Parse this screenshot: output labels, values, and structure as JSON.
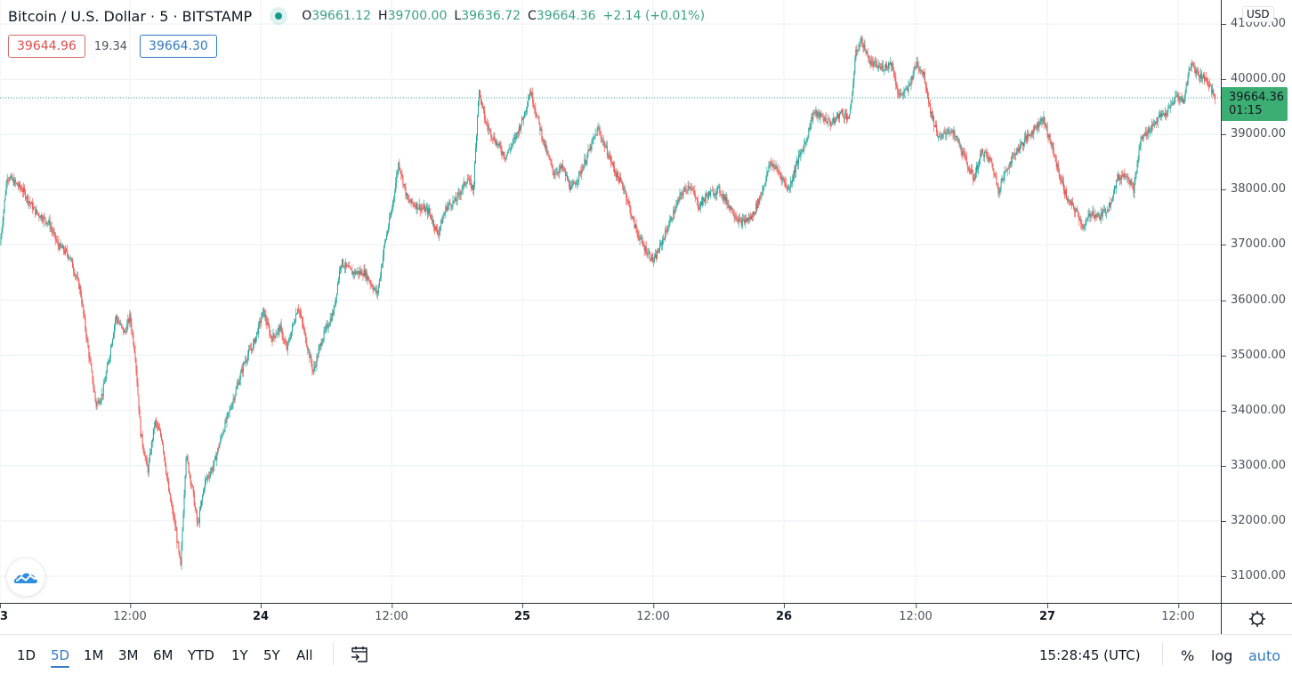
{
  "legend": {
    "symbol_title": "Bitcoin / U.S. Dollar · 5 · BITSTAMP",
    "market_status_icon": "market-open-dot",
    "ohlc": {
      "open_key": "O",
      "open": "39661.12",
      "high_key": "H",
      "high": "39700.00",
      "low_key": "L",
      "low": "39636.72",
      "close_key": "C",
      "close": "39664.36",
      "change": "+2.14 (+0.01%)"
    },
    "quote": {
      "bid": "39644.96",
      "spread": "19.34",
      "ask": "39664.30"
    }
  },
  "price_axis": {
    "currency": "USD",
    "ticks": [
      "41000.00",
      "40000.00",
      "39000.00",
      "38000.00",
      "37000.00",
      "36000.00",
      "35000.00",
      "34000.00",
      "33000.00",
      "32000.00",
      "31000.00"
    ],
    "last_price": "39664.36",
    "countdown": "01:15"
  },
  "time_axis": {
    "ticks": [
      {
        "label": "23",
        "day": true
      },
      {
        "label": "12:00",
        "day": false
      },
      {
        "label": "24",
        "day": true
      },
      {
        "label": "12:00",
        "day": false
      },
      {
        "label": "25",
        "day": true
      },
      {
        "label": "12:00",
        "day": false
      },
      {
        "label": "26",
        "day": true
      },
      {
        "label": "12:00",
        "day": false
      },
      {
        "label": "27",
        "day": true
      },
      {
        "label": "12:00",
        "day": false
      }
    ]
  },
  "bottom_bar": {
    "ranges": [
      "1D",
      "5D",
      "1M",
      "3M",
      "6M",
      "YTD",
      "1Y",
      "5Y",
      "All"
    ],
    "active_range": "5D",
    "goto_date_icon": "calendar-goto-icon",
    "clock": "15:28:45 (UTC)",
    "percent_label": "%",
    "log_label": "log",
    "auto_label": "auto"
  },
  "colors": {
    "up": "#26a69a",
    "down": "#ef5350",
    "price_line": "#26a69a",
    "accent": "#3179c4",
    "grid": "#f0f3fa"
  },
  "chart_data": {
    "type": "candlestick",
    "title": "Bitcoin / U.S. Dollar · 5 · BITSTAMP",
    "interval": "5 minutes",
    "xlabel": "",
    "ylabel": "USD",
    "ylim": [
      30500,
      41300
    ],
    "x_ticks": [
      "23",
      "12:00",
      "24",
      "12:00",
      "25",
      "12:00",
      "26",
      "12:00",
      "27",
      "12:00"
    ],
    "y_ticks": [
      31000,
      32000,
      33000,
      34000,
      35000,
      36000,
      37000,
      38000,
      39000,
      40000,
      41000
    ],
    "grid": true,
    "last_price": 39664.36,
    "path": [
      [
        0,
        37000
      ],
      [
        8,
        38250
      ],
      [
        25,
        38000
      ],
      [
        40,
        37600
      ],
      [
        55,
        37400
      ],
      [
        65,
        37000
      ],
      [
        78,
        36800
      ],
      [
        90,
        36200
      ],
      [
        100,
        35000
      ],
      [
        108,
        34100
      ],
      [
        115,
        34300
      ],
      [
        122,
        34900
      ],
      [
        130,
        35700
      ],
      [
        140,
        35400
      ],
      [
        146,
        35700
      ],
      [
        152,
        35000
      ],
      [
        158,
        33600
      ],
      [
        166,
        32900
      ],
      [
        174,
        33800
      ],
      [
        182,
        33500
      ],
      [
        190,
        32500
      ],
      [
        197,
        31900
      ],
      [
        203,
        31150
      ],
      [
        209,
        33200
      ],
      [
        216,
        32600
      ],
      [
        222,
        31900
      ],
      [
        230,
        32700
      ],
      [
        240,
        33000
      ],
      [
        250,
        33600
      ],
      [
        262,
        34200
      ],
      [
        275,
        34900
      ],
      [
        285,
        35200
      ],
      [
        296,
        35800
      ],
      [
        305,
        35300
      ],
      [
        315,
        35500
      ],
      [
        322,
        35100
      ],
      [
        335,
        35900
      ],
      [
        345,
        35200
      ],
      [
        352,
        34700
      ],
      [
        362,
        35300
      ],
      [
        375,
        35800
      ],
      [
        383,
        36700
      ],
      [
        395,
        36500
      ],
      [
        410,
        36500
      ],
      [
        424,
        36100
      ],
      [
        432,
        37000
      ],
      [
        440,
        37600
      ],
      [
        448,
        38500
      ],
      [
        458,
        37800
      ],
      [
        470,
        37700
      ],
      [
        482,
        37600
      ],
      [
        492,
        37200
      ],
      [
        502,
        37700
      ],
      [
        512,
        37800
      ],
      [
        525,
        38200
      ],
      [
        532,
        38000
      ],
      [
        538,
        39800
      ],
      [
        546,
        39200
      ],
      [
        556,
        38900
      ],
      [
        568,
        38600
      ],
      [
        578,
        38900
      ],
      [
        588,
        39300
      ],
      [
        596,
        39800
      ],
      [
        604,
        39300
      ],
      [
        612,
        38800
      ],
      [
        622,
        38300
      ],
      [
        632,
        38400
      ],
      [
        642,
        38000
      ],
      [
        652,
        38300
      ],
      [
        662,
        38700
      ],
      [
        672,
        39100
      ],
      [
        682,
        38700
      ],
      [
        692,
        38300
      ],
      [
        702,
        38000
      ],
      [
        712,
        37400
      ],
      [
        722,
        37000
      ],
      [
        735,
        36700
      ],
      [
        745,
        37100
      ],
      [
        755,
        37500
      ],
      [
        765,
        37900
      ],
      [
        775,
        38100
      ],
      [
        785,
        37700
      ],
      [
        795,
        37900
      ],
      [
        808,
        38000
      ],
      [
        820,
        37700
      ],
      [
        832,
        37400
      ],
      [
        845,
        37500
      ],
      [
        855,
        37900
      ],
      [
        866,
        38500
      ],
      [
        876,
        38300
      ],
      [
        886,
        38000
      ],
      [
        896,
        38500
      ],
      [
        906,
        38900
      ],
      [
        914,
        39400
      ],
      [
        925,
        39300
      ],
      [
        935,
        39200
      ],
      [
        945,
        39400
      ],
      [
        955,
        39300
      ],
      [
        962,
        40500
      ],
      [
        968,
        40700
      ],
      [
        978,
        40300
      ],
      [
        990,
        40200
      ],
      [
        1002,
        40300
      ],
      [
        1010,
        39700
      ],
      [
        1020,
        39800
      ],
      [
        1030,
        40300
      ],
      [
        1038,
        40100
      ],
      [
        1046,
        39400
      ],
      [
        1056,
        38900
      ],
      [
        1066,
        39100
      ],
      [
        1076,
        38900
      ],
      [
        1086,
        38500
      ],
      [
        1094,
        38200
      ],
      [
        1104,
        38700
      ],
      [
        1114,
        38500
      ],
      [
        1122,
        38000
      ],
      [
        1132,
        38400
      ],
      [
        1142,
        38700
      ],
      [
        1152,
        38900
      ],
      [
        1162,
        39100
      ],
      [
        1172,
        39300
      ],
      [
        1180,
        38900
      ],
      [
        1190,
        38300
      ],
      [
        1200,
        37800
      ],
      [
        1210,
        37600
      ],
      [
        1218,
        37300
      ],
      [
        1226,
        37600
      ],
      [
        1236,
        37500
      ],
      [
        1246,
        37700
      ],
      [
        1256,
        38200
      ],
      [
        1266,
        38300
      ],
      [
        1274,
        38000
      ],
      [
        1282,
        38900
      ],
      [
        1292,
        39100
      ],
      [
        1302,
        39300
      ],
      [
        1312,
        39400
      ],
      [
        1322,
        39700
      ],
      [
        1330,
        39600
      ],
      [
        1338,
        40300
      ],
      [
        1346,
        40100
      ],
      [
        1356,
        40000
      ],
      [
        1365,
        39664
      ]
    ]
  }
}
